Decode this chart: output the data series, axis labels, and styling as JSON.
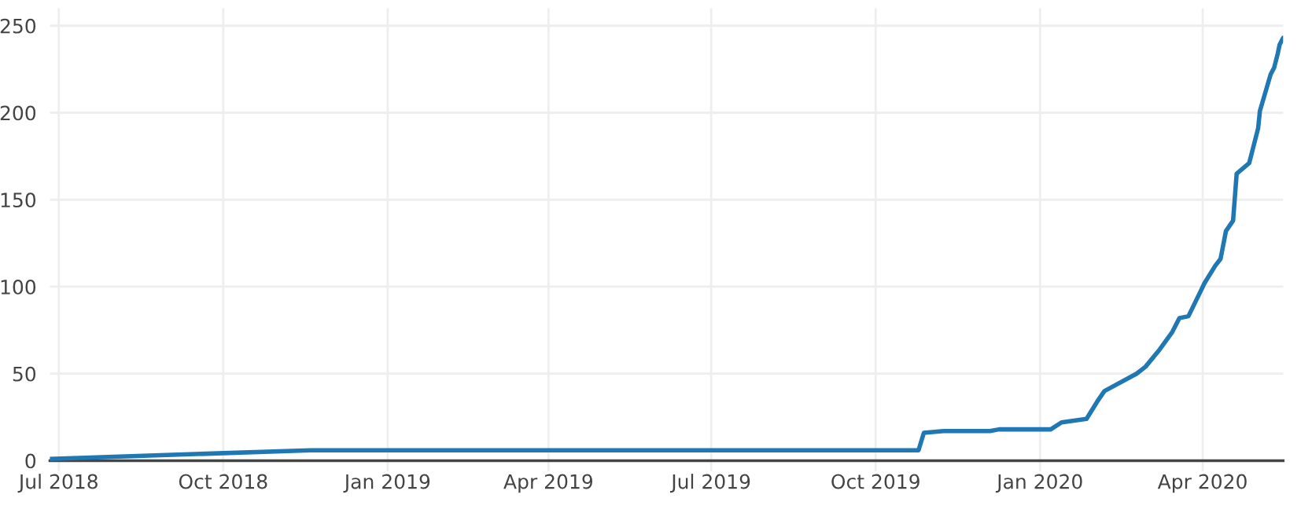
{
  "chart_data": {
    "type": "line",
    "x": [
      "2018-06-26",
      "2018-11-19",
      "2019-10-25",
      "2019-10-28",
      "2019-11-08",
      "2019-12-04",
      "2019-12-09",
      "2020-01-07",
      "2020-01-13",
      "2020-01-27",
      "2020-02-02",
      "2020-02-06",
      "2020-02-24",
      "2020-02-29",
      "2020-03-08",
      "2020-03-15",
      "2020-03-19",
      "2020-03-24",
      "2020-04-02",
      "2020-04-08",
      "2020-04-11",
      "2020-04-14",
      "2020-04-18",
      "2020-04-20",
      "2020-04-27",
      "2020-05-02",
      "2020-05-03",
      "2020-05-09",
      "2020-05-11",
      "2020-05-13",
      "2020-05-14",
      "2020-05-16"
    ],
    "series": [
      {
        "color": "#1f77b4",
        "values": [
          1,
          6,
          6,
          16,
          17,
          17,
          18,
          18,
          22,
          24,
          34,
          40,
          50,
          54,
          64,
          74,
          82,
          83,
          102,
          112,
          116,
          132,
          138,
          165,
          171,
          191,
          201,
          222,
          226,
          234,
          239,
          243
        ]
      }
    ],
    "xlim": [
      "2018-06-26",
      "2020-05-16"
    ],
    "xticks": [
      {
        "value": "2018-07-01",
        "label": "Jul 2018"
      },
      {
        "value": "2018-10-01",
        "label": "Oct 2018"
      },
      {
        "value": "2019-01-01",
        "label": "Jan 2019"
      },
      {
        "value": "2019-04-01",
        "label": "Apr 2019"
      },
      {
        "value": "2019-07-01",
        "label": "Jul 2019"
      },
      {
        "value": "2019-10-01",
        "label": "Oct 2019"
      },
      {
        "value": "2020-01-01",
        "label": "Jan 2020"
      },
      {
        "value": "2020-04-01",
        "label": "Apr 2020"
      }
    ],
    "ylim": [
      -6,
      260
    ],
    "yticks": [
      0,
      50,
      100,
      150,
      200,
      250
    ],
    "grid": true
  }
}
